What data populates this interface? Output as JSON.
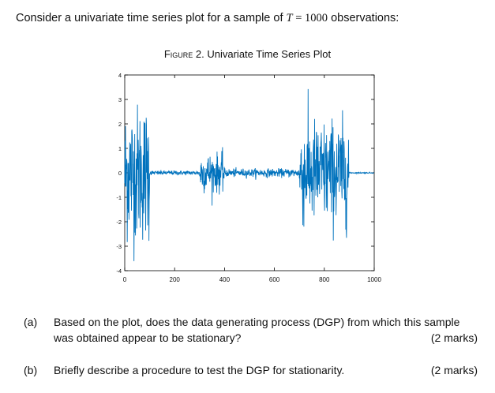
{
  "intro": {
    "before": "Consider a univariate time series plot for a sample of ",
    "symbol": "T",
    "equals": " = ",
    "value": "1000",
    "after": " observations:"
  },
  "figure": {
    "label": "Figure",
    "number": " 2.",
    "title": " Univariate Time Series Plot"
  },
  "chart_data": {
    "type": "line",
    "title": "",
    "xlabel": "",
    "ylabel": "",
    "xlim": [
      0,
      1000
    ],
    "ylim": [
      -4,
      4
    ],
    "x_ticks": [
      "0",
      "200",
      "400",
      "600",
      "800",
      "1000"
    ],
    "y_ticks": [
      "4",
      "3",
      "2",
      "1",
      "0",
      "-1",
      "-2",
      "-3",
      "-4"
    ],
    "grid": false,
    "series_color": "#0072BD",
    "segments": [
      {
        "x_start": 0,
        "x_end": 100,
        "mean": 0.0,
        "amplitude": 2.5
      },
      {
        "x_start": 100,
        "x_end": 300,
        "mean": 0.0,
        "amplitude": 0.08
      },
      {
        "x_start": 300,
        "x_end": 400,
        "mean": 0.0,
        "amplitude": 0.7
      },
      {
        "x_start": 400,
        "x_end": 700,
        "mean": 0.0,
        "amplitude": 0.15
      },
      {
        "x_start": 700,
        "x_end": 900,
        "mean": 0.0,
        "amplitude": 1.9
      },
      {
        "x_start": 900,
        "x_end": 1000,
        "mean": 0.0,
        "amplitude": 0.02
      }
    ]
  },
  "questions": [
    {
      "label": "(a)",
      "text": "Based on the plot, does the data generating process (DGP) from which this sample was obtained appear to be stationary?",
      "marks": "(2 marks)"
    },
    {
      "label": "(b)",
      "text": "Briefly describe a procedure to test the DGP for stationarity.",
      "marks": "(2 marks)"
    }
  ]
}
